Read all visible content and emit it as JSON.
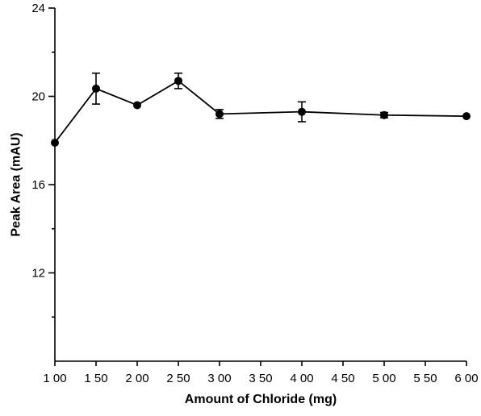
{
  "chart_data": {
    "type": "line",
    "title": "",
    "xlabel": "Amount of Chloride (mg)",
    "ylabel": "Peak Area (mAU)",
    "xlim": [
      100,
      600
    ],
    "ylim": [
      8,
      24
    ],
    "x_ticks": [
      100,
      150,
      200,
      250,
      300,
      350,
      400,
      450,
      500,
      550,
      600
    ],
    "x_tick_labels": [
      "1 00",
      "1 50",
      "2 00",
      "2 50",
      "3 00",
      "3 50",
      "4 00",
      "4 50",
      "5 00",
      "5 50",
      "6 00"
    ],
    "y_ticks": [
      12,
      16,
      20,
      24
    ],
    "y_minor_ticks": [
      10,
      14,
      18,
      22
    ],
    "y_tick_labels": [
      "12",
      "16",
      "20",
      "24"
    ],
    "grid": false,
    "series": [
      {
        "points": [
          {
            "x": 100,
            "y": 17.9,
            "err": 0
          },
          {
            "x": 150,
            "y": 20.35,
            "err": 0.7
          },
          {
            "x": 200,
            "y": 19.6,
            "err": 0
          },
          {
            "x": 250,
            "y": 20.7,
            "err": 0.35
          },
          {
            "x": 300,
            "y": 19.2,
            "err": 0.2
          },
          {
            "x": 400,
            "y": 19.3,
            "err": 0.45
          },
          {
            "x": 500,
            "y": 19.15,
            "err": 0.12
          },
          {
            "x": 600,
            "y": 19.1,
            "err": 0
          }
        ]
      }
    ]
  }
}
